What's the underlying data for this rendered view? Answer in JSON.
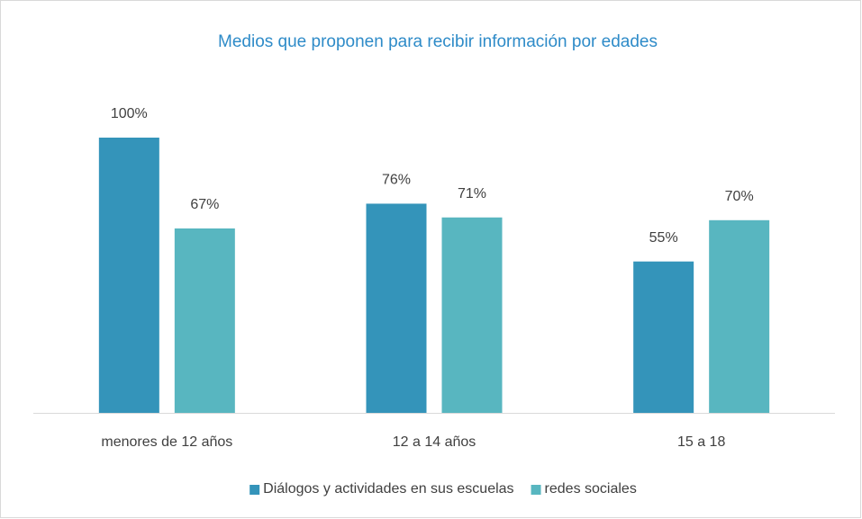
{
  "chart_data": {
    "type": "bar",
    "title": "Medios que proponen para recibir información por edades",
    "categories": [
      "menores de 12 años",
      "12 a 14 años",
      "15 a 18"
    ],
    "series": [
      {
        "name": "Diálogos y actividades en sus escuelas",
        "color": "#3494ba",
        "values": [
          100,
          76,
          55
        ],
        "value_labels": [
          "100%",
          "76%",
          "55%"
        ]
      },
      {
        "name": "redes sociales",
        "color": "#58b6c0",
        "values": [
          67,
          71,
          70
        ],
        "value_labels": [
          "67%",
          "71%",
          "70%"
        ]
      }
    ],
    "legend": "bottom"
  }
}
